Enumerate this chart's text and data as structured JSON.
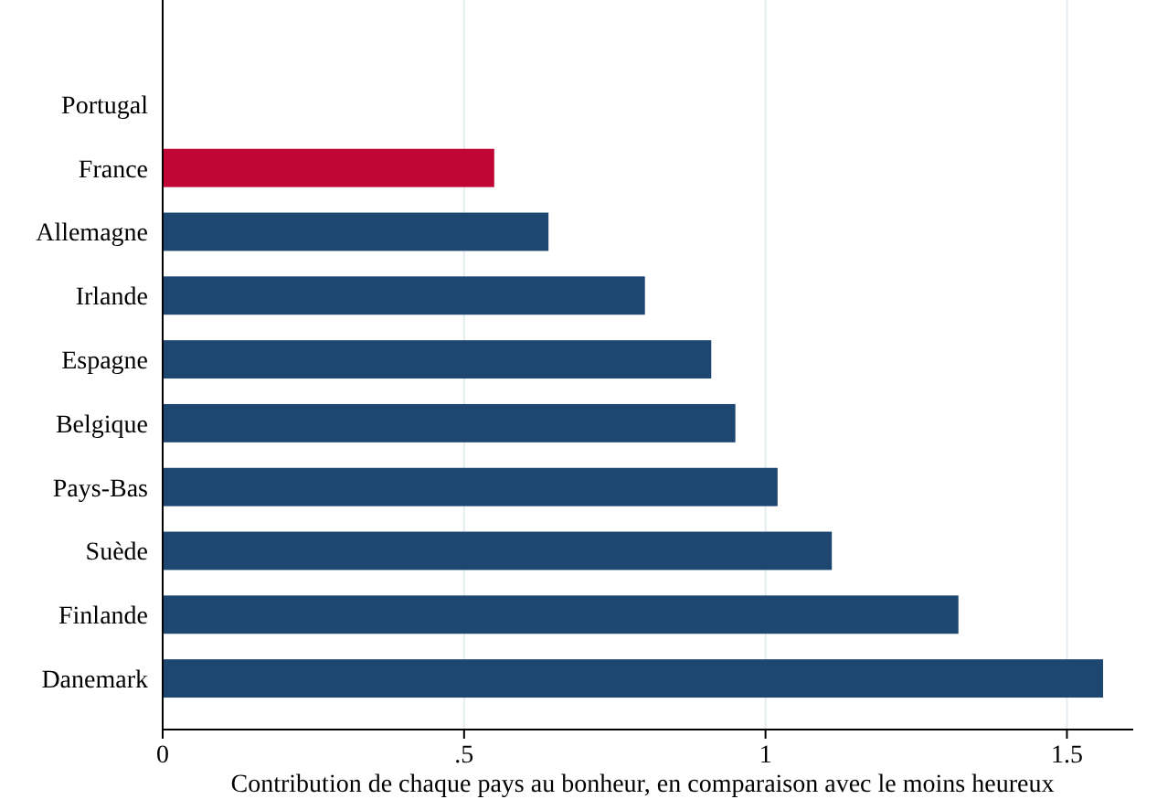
{
  "chart_data": {
    "type": "bar",
    "orientation": "horizontal",
    "xlabel": "Contribution de chaque pays au bonheur, en comparaison avec le moins heureux",
    "categories": [
      "Portugal",
      "France",
      "Allemagne",
      "Irlande",
      "Espagne",
      "Belgique",
      "Pays-Bas",
      "Suède",
      "Finlande",
      "Danemark"
    ],
    "values": [
      0,
      0.55,
      0.64,
      0.8,
      0.91,
      0.95,
      1.02,
      1.11,
      1.32,
      1.56
    ],
    "colors": [
      "#1d4670",
      "#c10534",
      "#1d4670",
      "#1d4670",
      "#1d4670",
      "#1d4670",
      "#1d4670",
      "#1d4670",
      "#1d4670",
      "#1d4670"
    ],
    "xlim": [
      0,
      1.61
    ],
    "xticks": [
      0,
      {
        "value": 0.5,
        "label": ".5"
      },
      1,
      {
        "value": 1.5,
        "label": "1.5"
      }
    ],
    "grid": "x"
  }
}
